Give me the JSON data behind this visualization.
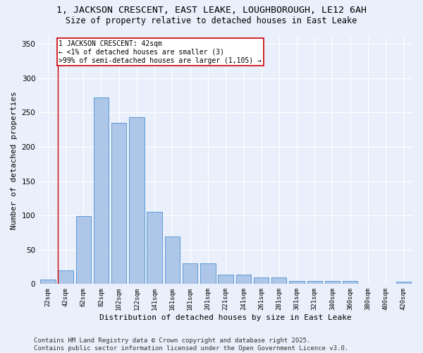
{
  "title1": "1, JACKSON CRESCENT, EAST LEAKE, LOUGHBOROUGH, LE12 6AH",
  "title2": "Size of property relative to detached houses in East Leake",
  "xlabel": "Distribution of detached houses by size in East Leake",
  "ylabel": "Number of detached properties",
  "bar_labels": [
    "22sqm",
    "42sqm",
    "62sqm",
    "82sqm",
    "102sqm",
    "122sqm",
    "141sqm",
    "161sqm",
    "181sqm",
    "201sqm",
    "221sqm",
    "241sqm",
    "261sqm",
    "281sqm",
    "301sqm",
    "321sqm",
    "340sqm",
    "360sqm",
    "380sqm",
    "400sqm",
    "420sqm"
  ],
  "bar_values": [
    7,
    20,
    99,
    272,
    235,
    243,
    105,
    69,
    30,
    30,
    14,
    14,
    10,
    10,
    4,
    4,
    4,
    4,
    0,
    0,
    3
  ],
  "bar_color": "#aec6e8",
  "bar_edge_color": "#5b9bd5",
  "background_color": "#eaf0fb",
  "grid_color": "#ffffff",
  "red_line_index": 1,
  "annotation_text": "1 JACKSON CRESCENT: 42sqm\n← <1% of detached houses are smaller (3)\n>99% of semi-detached houses are larger (1,105) →",
  "annotation_box_color": "#ffffff",
  "annotation_box_edge": "#cc0000",
  "ylim": [
    0,
    360
  ],
  "yticks": [
    0,
    50,
    100,
    150,
    200,
    250,
    300,
    350
  ],
  "footer_text": "Contains HM Land Registry data © Crown copyright and database right 2025.\nContains public sector information licensed under the Open Government Licence v3.0.",
  "title1_fontsize": 9.5,
  "title2_fontsize": 8.5,
  "xlabel_fontsize": 8,
  "ylabel_fontsize": 8,
  "footer_fontsize": 6.5
}
